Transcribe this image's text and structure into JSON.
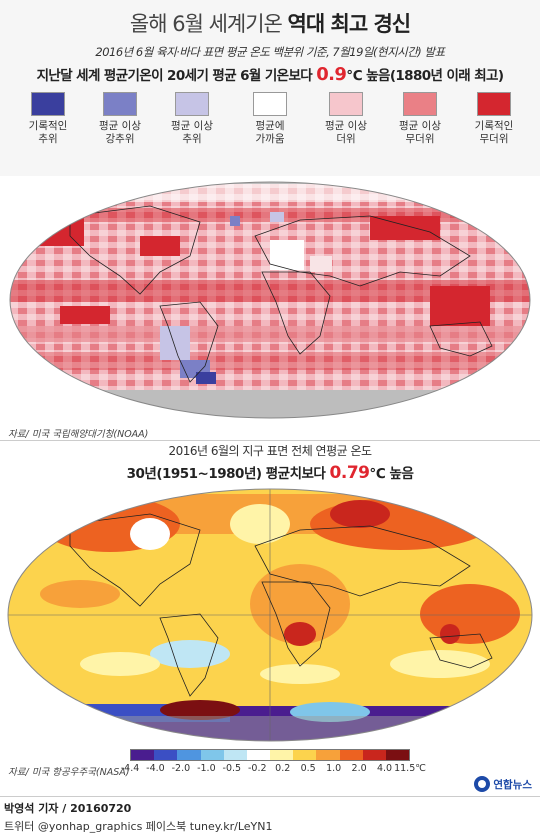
{
  "header": {
    "title_prefix": "올해 6월 세계기온 ",
    "title_emph": "역대 최고 경신",
    "subtitle": "2016년 6월 육지·바다 표면 평균 온도 백분위 기준, 7월19일(현지시간) 발표",
    "headline_pre": "지난달 세계 평균기온이 20세기 평균 6월 기온보다 ",
    "headline_value": "0.9",
    "headline_post": "℃ 높음(1880년 이래 최고)"
  },
  "legend": [
    {
      "label": "기록적인\n추위",
      "color": "#3a3f9e"
    },
    {
      "label": "평균 이상\n강추위",
      "color": "#7b80c6"
    },
    {
      "label": "평균 이상\n추위",
      "color": "#c6c4e6"
    },
    {
      "label": "평균에\n가까움",
      "color": "#ffffff"
    },
    {
      "label": "평균 이상\n더위",
      "color": "#f6c6cc"
    },
    {
      "label": "평균 이상\n무더위",
      "color": "#ea8086"
    },
    {
      "label": "기록적인\n무더위",
      "color": "#d4262f"
    }
  ],
  "map1": {
    "source": "자료/ 미국 국립해양대기청(NOAA)"
  },
  "map2": {
    "title": "2016년 6월의 지구 표면 전체 연평균 온도",
    "head_pre": "30년(1951~1980년) 평균치보다 ",
    "head_value": "0.79",
    "head_post": "℃ 높음",
    "source": "자료/ 미국 항공우주국(NASA)"
  },
  "scale": {
    "labels": [
      "-4.4",
      "-4.0",
      "-2.0",
      "-1.0",
      "-0.5",
      "-0.2",
      "0.2",
      "0.5",
      "1.0",
      "2.0",
      "4.0",
      "11.5℃"
    ],
    "colors": [
      "#4a1d8f",
      "#3b4fc4",
      "#4f95e0",
      "#7fc6ea",
      "#bfe6f4",
      "#ffffff",
      "#fff4a8",
      "#fcd34d",
      "#f7a13a",
      "#ed6221",
      "#c9261d",
      "#7b0f12"
    ]
  },
  "footer": {
    "reporter": "박영석 기자 / 20160720",
    "social": "트위터 @yonhap_graphics  페이스북 tuney.kr/LeYN1",
    "logo": "연합뉴스"
  }
}
